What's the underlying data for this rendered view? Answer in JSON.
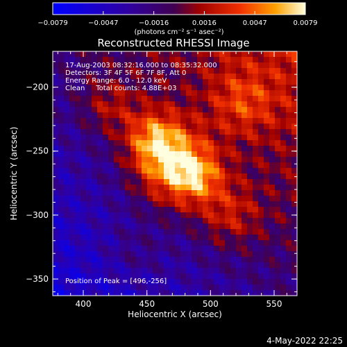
{
  "chart_data": {
    "type": "heatmap",
    "title": "Reconstructed RHESSI Image",
    "xlabel": "Heliocentric X (arcsec)",
    "ylabel": "Heliocentric Y (arcsec)",
    "xlim": [
      376,
      568
    ],
    "ylim": [
      -363,
      -172
    ],
    "x_ticks": [
      "400",
      "450",
      "500",
      "550"
    ],
    "y_ticks": [
      "-200",
      "-250",
      "-300",
      "-350"
    ],
    "colorbar": {
      "range": [
        -0.0079,
        0.0079
      ],
      "ticks": [
        "-0.0079",
        "-0.0047",
        "-0.0016",
        "0.0016",
        "0.0047",
        "0.0079"
      ],
      "units": "(photons cm⁻² s⁻¹ asec⁻²)"
    },
    "annotations": {
      "time": "17-Aug-2003 08:32:16.000 to 08:35:32.000",
      "detectors": "Detectors: 3F 4F 5F 6F 7F 8F, Att 0",
      "energy": "Energy Range: 6.0 - 12.0 keV",
      "clean": "Clean     Total counts: 4.88E+03",
      "peak": "Position of Peak = [496,-256]"
    },
    "peak_position": [
      496,
      -256
    ],
    "sources": [
      {
        "x": 470,
        "y": -262,
        "intensity": 0.0072,
        "sigma": 22
      },
      {
        "x": 455,
        "y": -240,
        "intensity": 0.005,
        "sigma": 16
      },
      {
        "x": 490,
        "y": -270,
        "intensity": 0.004,
        "sigma": 14
      },
      {
        "x": 515,
        "y": -300,
        "intensity": 0.0035,
        "sigma": 18
      },
      {
        "x": 525,
        "y": -212,
        "intensity": 0.0032,
        "sigma": 18
      },
      {
        "x": 420,
        "y": -215,
        "intensity": 0.003,
        "sigma": 16
      },
      {
        "x": 440,
        "y": -330,
        "intensity": 0.0015,
        "sigma": 16
      }
    ],
    "background_gradient": {
      "top_right": 0.0026,
      "bottom_left": -0.0058,
      "ripple_amplitude": 0.0018
    }
  },
  "footer": {
    "date": "4-May-2022 22:25"
  }
}
